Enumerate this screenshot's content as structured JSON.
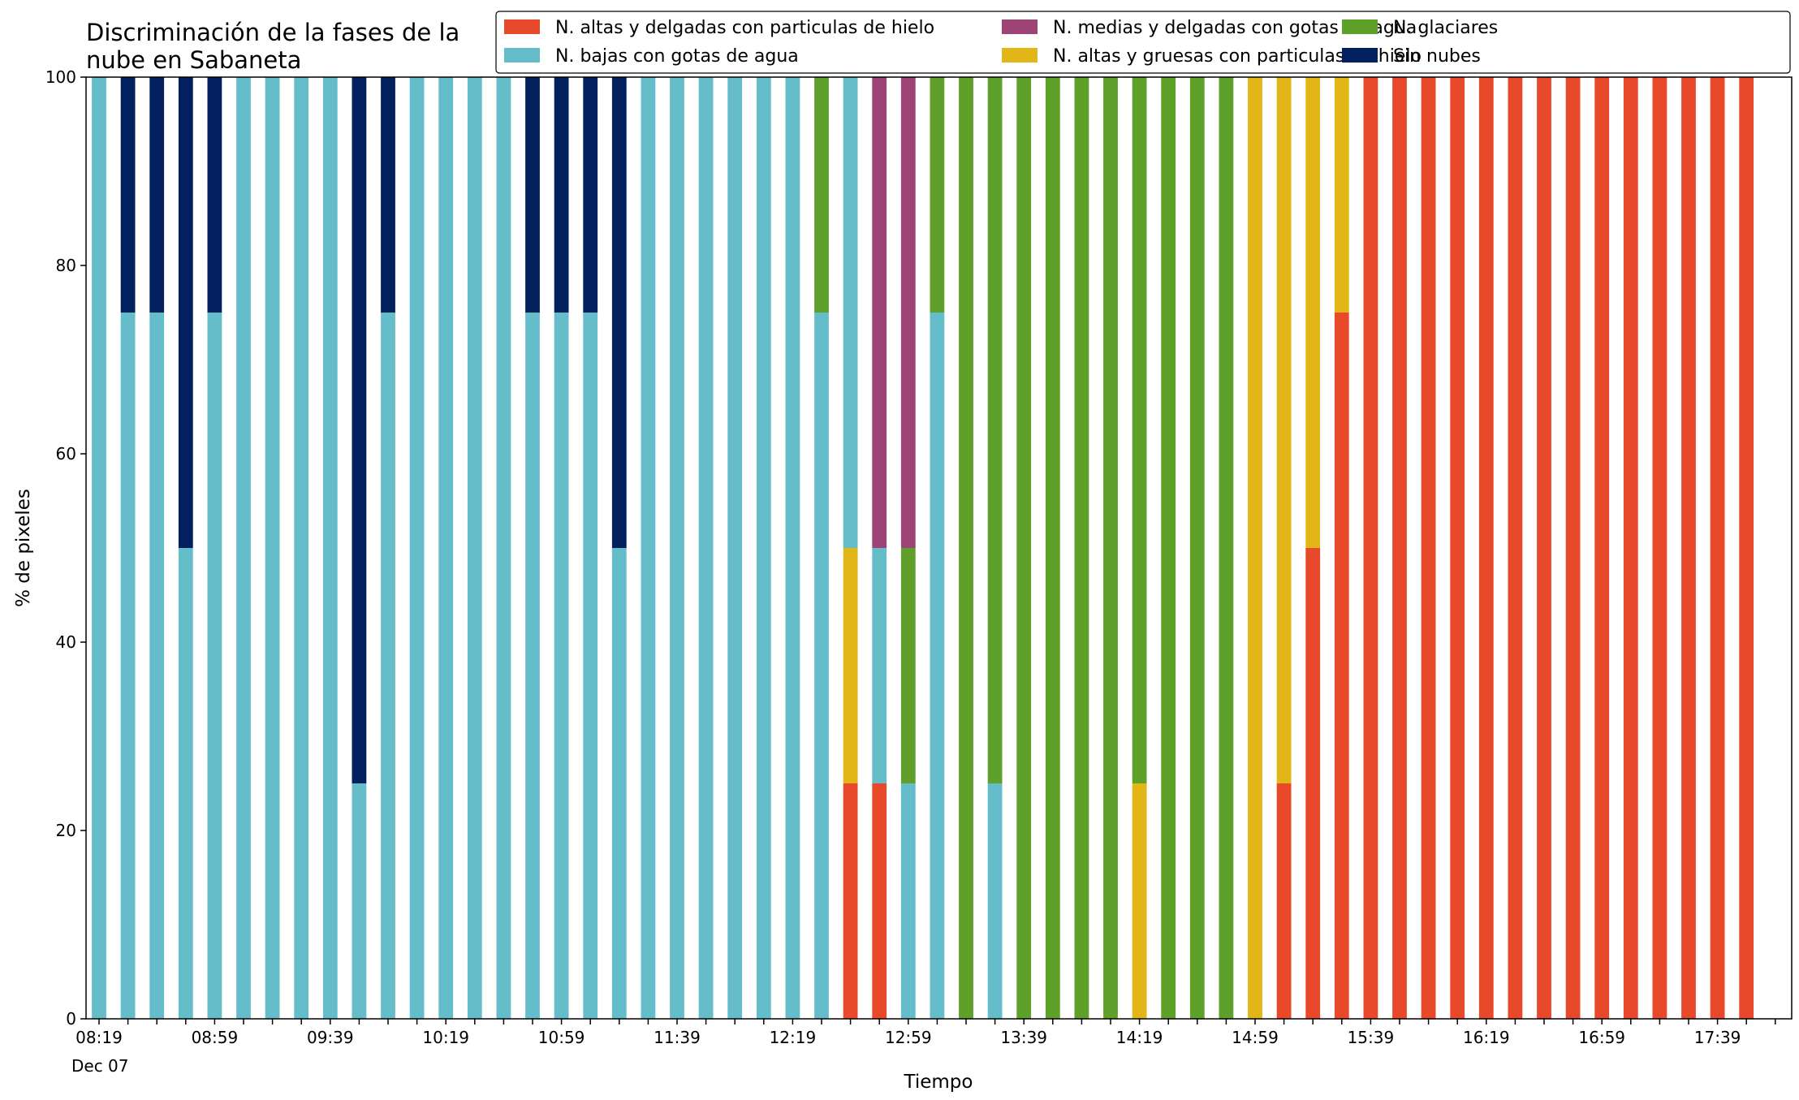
{
  "chart_data": {
    "type": "bar",
    "stacked": true,
    "title_lines": [
      "Discriminación de la fases de la",
      "nube en Sabaneta"
    ],
    "xlabel": "Tiempo",
    "ylabel": "% de pixeles",
    "ylim": [
      0,
      100
    ],
    "yticks": [
      0,
      20,
      40,
      60,
      80,
      100
    ],
    "x_tick_labels": [
      "08:19",
      "08:59",
      "09:39",
      "10:19",
      "10:59",
      "11:39",
      "12:19",
      "12:59",
      "13:39",
      "14:19",
      "14:59",
      "15:39",
      "16:19",
      "16:59",
      "17:39"
    ],
    "x_date_label": "Dec 07",
    "grid": false,
    "legend_position": "top-right",
    "interval_minutes": 10,
    "categories": [
      "08:19",
      "08:29",
      "08:39",
      "08:49",
      "08:59",
      "09:09",
      "09:19",
      "09:29",
      "09:39",
      "09:49",
      "09:59",
      "10:09",
      "10:19",
      "10:29",
      "10:39",
      "10:49",
      "10:59",
      "11:09",
      "11:19",
      "11:29",
      "11:39",
      "11:49",
      "11:59",
      "12:09",
      "12:19",
      "12:29",
      "12:39",
      "12:49",
      "12:59",
      "13:09",
      "13:19",
      "13:29",
      "13:39",
      "13:49",
      "13:59",
      "14:09",
      "14:19",
      "14:29",
      "14:39",
      "14:49",
      "14:59",
      "15:09",
      "15:19",
      "15:29",
      "15:39",
      "15:49",
      "15:59",
      "16:09",
      "16:19",
      "16:29",
      "16:39",
      "16:49",
      "16:59",
      "17:09",
      "17:19",
      "17:29",
      "17:39",
      "17:49"
    ],
    "series": [
      {
        "name": "N. altas y delgadas con particulas de hielo",
        "color": "#e8492b",
        "values": [
          0,
          0,
          0,
          0,
          0,
          0,
          0,
          0,
          0,
          0,
          0,
          0,
          0,
          0,
          0,
          0,
          0,
          0,
          0,
          0,
          0,
          0,
          0,
          0,
          0,
          0,
          25,
          25,
          0,
          0,
          0,
          0,
          0,
          0,
          0,
          0,
          0,
          0,
          0,
          0,
          0,
          25,
          50,
          75,
          100,
          100,
          100,
          100,
          100,
          100,
          100,
          100,
          100,
          100,
          100,
          100,
          100,
          100
        ]
      },
      {
        "name": "N. altas y gruesas con particulas de hielo",
        "color": "#e2b616",
        "values": [
          0,
          0,
          0,
          0,
          0,
          0,
          0,
          0,
          0,
          0,
          0,
          0,
          0,
          0,
          0,
          0,
          0,
          0,
          0,
          0,
          0,
          0,
          0,
          0,
          0,
          0,
          25,
          0,
          0,
          0,
          0,
          0,
          0,
          0,
          0,
          0,
          25,
          0,
          0,
          0,
          100,
          75,
          50,
          25,
          0,
          0,
          0,
          0,
          0,
          0,
          0,
          0,
          0,
          0,
          0,
          0,
          0,
          0
        ]
      },
      {
        "name": "N. bajas con gotas de agua",
        "color": "#66bdca",
        "values": [
          100,
          75,
          75,
          50,
          75,
          100,
          100,
          100,
          100,
          25,
          75,
          100,
          100,
          100,
          100,
          75,
          75,
          75,
          50,
          100,
          100,
          100,
          100,
          100,
          100,
          75,
          50,
          25,
          25,
          75,
          0,
          25,
          0,
          0,
          0,
          0,
          0,
          0,
          0,
          0,
          0,
          0,
          0,
          0,
          0,
          0,
          0,
          0,
          0,
          0,
          0,
          0,
          0,
          0,
          0,
          0,
          0,
          0
        ]
      },
      {
        "name": "N. glaciares",
        "color": "#5fa02b",
        "values": [
          0,
          0,
          0,
          0,
          0,
          0,
          0,
          0,
          0,
          0,
          0,
          0,
          0,
          0,
          0,
          0,
          0,
          0,
          0,
          0,
          0,
          0,
          0,
          0,
          0,
          25,
          0,
          0,
          25,
          25,
          100,
          75,
          100,
          100,
          100,
          100,
          75,
          100,
          100,
          100,
          0,
          0,
          0,
          0,
          0,
          0,
          0,
          0,
          0,
          0,
          0,
          0,
          0,
          0,
          0,
          0,
          0,
          0
        ]
      },
      {
        "name": "N. medias y delgadas con gotas de agua",
        "color": "#9e4375",
        "values": [
          0,
          0,
          0,
          0,
          0,
          0,
          0,
          0,
          0,
          0,
          0,
          0,
          0,
          0,
          0,
          0,
          0,
          0,
          0,
          0,
          0,
          0,
          0,
          0,
          0,
          0,
          0,
          50,
          50,
          0,
          0,
          0,
          0,
          0,
          0,
          0,
          0,
          0,
          0,
          0,
          0,
          0,
          0,
          0,
          0,
          0,
          0,
          0,
          0,
          0,
          0,
          0,
          0,
          0,
          0,
          0,
          0,
          0
        ]
      },
      {
        "name": "Sin nubes",
        "color": "#03205e",
        "values": [
          0,
          25,
          25,
          50,
          25,
          0,
          0,
          0,
          0,
          75,
          25,
          0,
          0,
          0,
          0,
          25,
          25,
          25,
          50,
          0,
          0,
          0,
          0,
          0,
          0,
          0,
          0,
          0,
          0,
          0,
          0,
          0,
          0,
          0,
          0,
          0,
          0,
          0,
          0,
          0,
          0,
          0,
          0,
          0,
          0,
          0,
          0,
          0,
          0,
          0,
          0,
          0,
          0,
          0,
          0,
          0,
          0,
          0
        ]
      }
    ],
    "legend_order": [
      0,
      2,
      4,
      1,
      3,
      5
    ]
  }
}
